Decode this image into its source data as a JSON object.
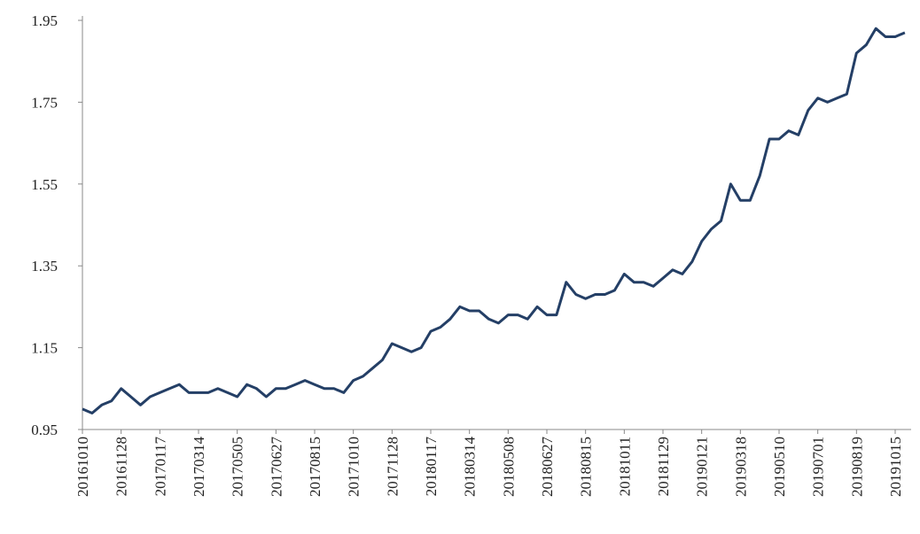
{
  "chart_data": {
    "type": "line",
    "color": "#243f66",
    "categories": [
      "20161010",
      null,
      null,
      null,
      "20161128",
      null,
      null,
      null,
      "20170117",
      null,
      null,
      null,
      "20170314",
      null,
      null,
      null,
      "20170505",
      null,
      null,
      null,
      "20170627",
      null,
      null,
      null,
      "20170815",
      null,
      null,
      null,
      "20171010",
      null,
      null,
      null,
      "20171128",
      null,
      null,
      null,
      "20180117",
      null,
      null,
      null,
      "20180314",
      null,
      null,
      null,
      "20180508",
      null,
      null,
      null,
      "20180627",
      null,
      null,
      null,
      "20180815",
      null,
      null,
      null,
      "20181011",
      null,
      null,
      null,
      "20181129",
      null,
      null,
      null,
      "20190121",
      null,
      null,
      null,
      "20190318",
      null,
      null,
      null,
      "20190510",
      null,
      null,
      null,
      "20190701",
      null,
      null,
      null,
      "20190819",
      null,
      null,
      null,
      "20191015",
      null
    ],
    "values": [
      1.0,
      0.99,
      1.01,
      1.02,
      1.05,
      1.03,
      1.01,
      1.03,
      1.04,
      1.05,
      1.06,
      1.04,
      1.04,
      1.04,
      1.05,
      1.04,
      1.03,
      1.06,
      1.05,
      1.03,
      1.05,
      1.05,
      1.06,
      1.07,
      1.06,
      1.05,
      1.05,
      1.04,
      1.07,
      1.08,
      1.1,
      1.12,
      1.16,
      1.15,
      1.14,
      1.15,
      1.19,
      1.2,
      1.22,
      1.25,
      1.24,
      1.24,
      1.22,
      1.21,
      1.23,
      1.23,
      1.22,
      1.25,
      1.23,
      1.23,
      1.31,
      1.28,
      1.27,
      1.28,
      1.28,
      1.29,
      1.33,
      1.31,
      1.31,
      1.3,
      1.32,
      1.34,
      1.33,
      1.36,
      1.41,
      1.44,
      1.46,
      1.55,
      1.51,
      1.51,
      1.57,
      1.66,
      1.66,
      1.68,
      1.67,
      1.73,
      1.76,
      1.75,
      1.76,
      1.77,
      1.87,
      1.89,
      1.93,
      1.91,
      1.91,
      1.92
    ],
    "ylim": [
      0.95,
      1.95
    ],
    "yticks": [
      0.95,
      1.15,
      1.35,
      1.55,
      1.75,
      1.95
    ],
    "grid": false
  }
}
